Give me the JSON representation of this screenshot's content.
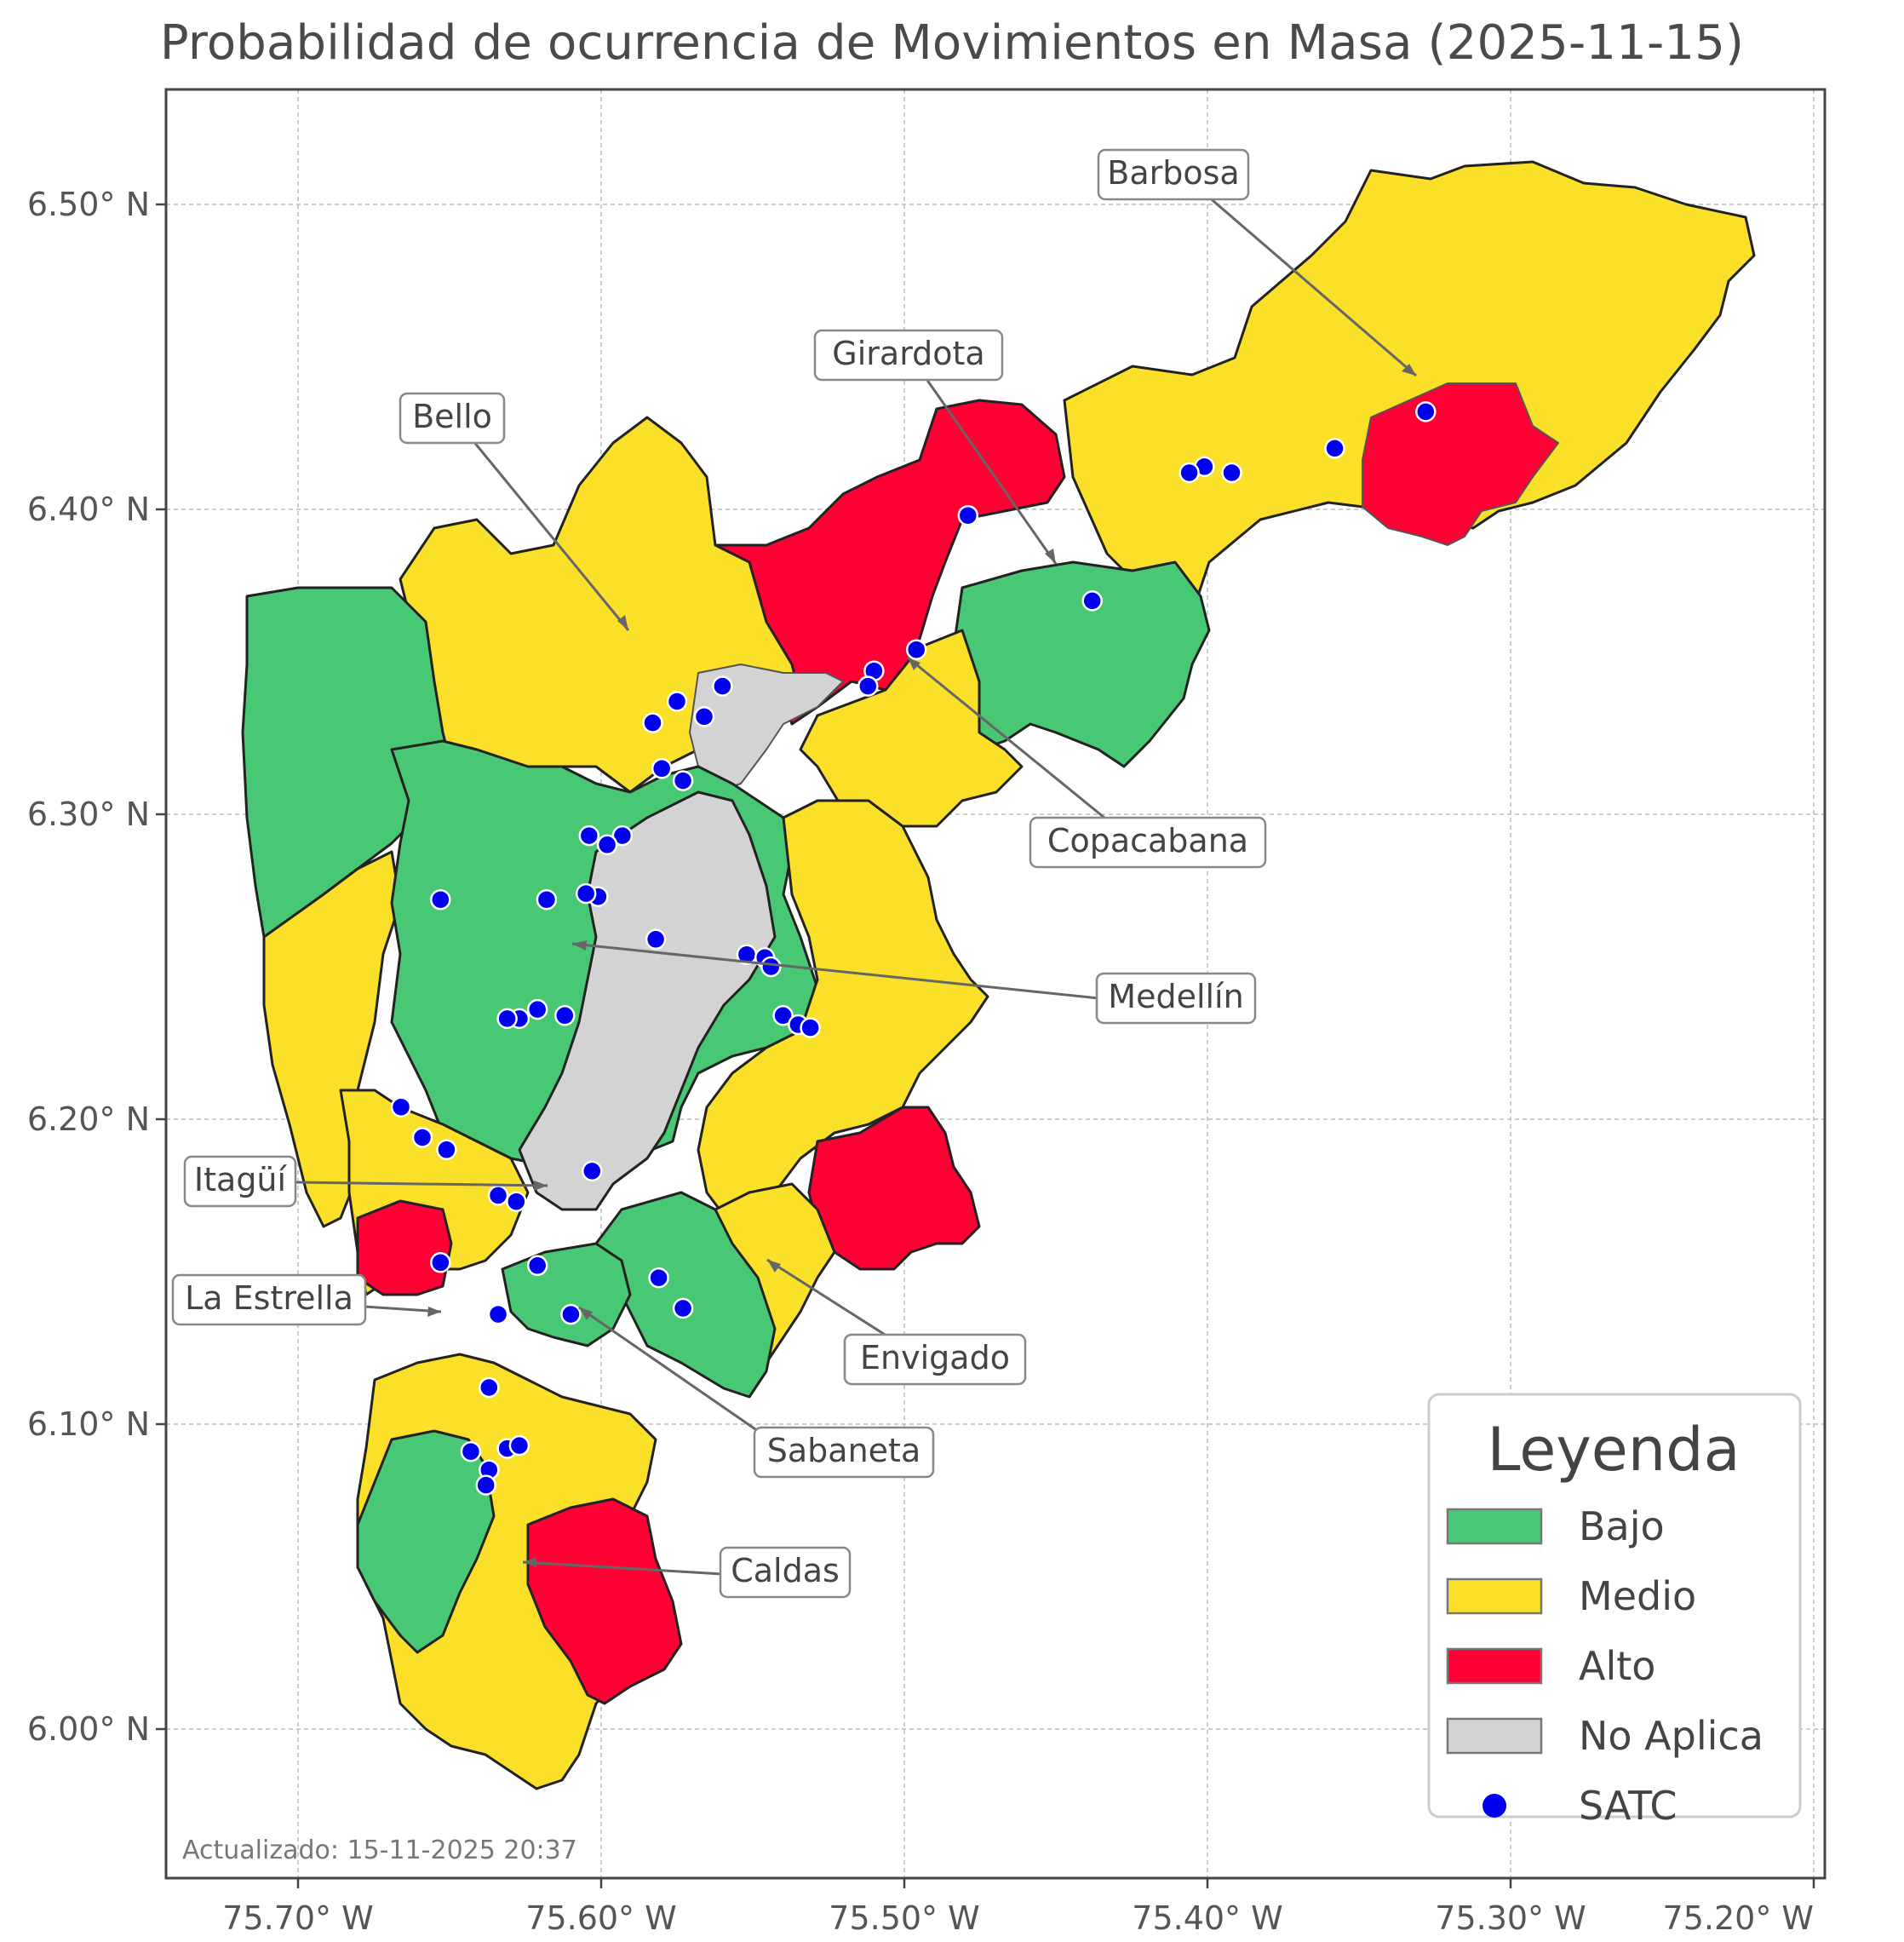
{
  "title": "Probabilidad de ocurrencia de Movimientos en Masa (2025-11-15)",
  "axes": {
    "x_ticks": [
      "75.70° W",
      "75.60° W",
      "75.50° W",
      "75.40° W",
      "75.30° W",
      "75.20° W"
    ],
    "y_ticks": [
      "6.50° N",
      "6.40° N",
      "6.30° N",
      "6.20° N",
      "6.10° N",
      "6.00° N"
    ],
    "x_range": [
      -75.745,
      -75.198
    ],
    "y_range": [
      5.953,
      6.537
    ],
    "grid": true
  },
  "colors": {
    "bajo": "#48c774",
    "medio": "#fbe02a",
    "alto": "#fe0034",
    "no_aplica": "#d3d3d3",
    "satc": "#0000ee"
  },
  "municipalities": [
    {
      "label": "Barbosa",
      "lon": -75.332,
      "lat": 6.445
    },
    {
      "label": "Girardota",
      "lon": -75.452,
      "lat": 6.38
    },
    {
      "label": "Bello",
      "lon": -75.592,
      "lat": 6.36
    },
    {
      "label": "Copacabana",
      "lon": -75.502,
      "lat": 6.352
    },
    {
      "label": "Medellín",
      "lon": -75.61,
      "lat": 6.258
    },
    {
      "label": "Itagüí",
      "lon": -75.618,
      "lat": 6.179
    },
    {
      "label": "Envigado",
      "lon": -75.545,
      "lat": 6.153
    },
    {
      "label": "La Estrella",
      "lon": -75.637,
      "lat": 6.137
    },
    {
      "label": "Sabaneta",
      "lon": -75.608,
      "lat": 6.138
    },
    {
      "label": "Caldas",
      "lon": -75.627,
      "lat": 6.055
    }
  ],
  "satc_stations": [
    [
      -75.328,
      6.432
    ],
    [
      -75.358,
      6.42
    ],
    [
      -75.392,
      6.412
    ],
    [
      -75.401,
      6.414
    ],
    [
      -75.406,
      6.412
    ],
    [
      -75.479,
      6.398
    ],
    [
      -75.438,
      6.37
    ],
    [
      -75.496,
      6.354
    ],
    [
      -75.51,
      6.347
    ],
    [
      -75.512,
      6.342
    ],
    [
      -75.56,
      6.342
    ],
    [
      -75.566,
      6.332
    ],
    [
      -75.575,
      6.337
    ],
    [
      -75.583,
      6.33
    ],
    [
      -75.58,
      6.315
    ],
    [
      -75.573,
      6.311
    ],
    [
      -75.593,
      6.293
    ],
    [
      -75.598,
      6.29
    ],
    [
      -75.604,
      6.293
    ],
    [
      -75.601,
      6.273
    ],
    [
      -75.653,
      6.272
    ],
    [
      -75.618,
      6.272
    ],
    [
      -75.605,
      6.274
    ],
    [
      -75.582,
      6.259
    ],
    [
      -75.552,
      6.254
    ],
    [
      -75.546,
      6.253
    ],
    [
      -75.544,
      6.25
    ],
    [
      -75.54,
      6.234
    ],
    [
      -75.535,
      6.231
    ],
    [
      -75.531,
      6.23
    ],
    [
      -75.621,
      6.236
    ],
    [
      -75.612,
      6.234
    ],
    [
      -75.627,
      6.233
    ],
    [
      -75.631,
      6.233
    ],
    [
      -75.666,
      6.204
    ],
    [
      -75.659,
      6.194
    ],
    [
      -75.651,
      6.19
    ],
    [
      -75.603,
      6.183
    ],
    [
      -75.634,
      6.175
    ],
    [
      -75.628,
      6.173
    ],
    [
      -75.653,
      6.153
    ],
    [
      -75.621,
      6.152
    ],
    [
      -75.581,
      6.148
    ],
    [
      -75.573,
      6.138
    ],
    [
      -75.61,
      6.136
    ],
    [
      -75.634,
      6.136
    ],
    [
      -75.637,
      6.112
    ],
    [
      -75.643,
      6.091
    ],
    [
      -75.631,
      6.092
    ],
    [
      -75.627,
      6.093
    ],
    [
      -75.637,
      6.085
    ],
    [
      -75.638,
      6.08
    ]
  ],
  "legend": {
    "title": "Leyenda",
    "items": [
      {
        "label": "Bajo",
        "kind": "patch",
        "color": "#48c774"
      },
      {
        "label": "Medio",
        "kind": "patch",
        "color": "#fbe02a"
      },
      {
        "label": "Alto",
        "kind": "patch",
        "color": "#fe0034"
      },
      {
        "label": "No Aplica",
        "kind": "patch",
        "color": "#d3d3d3"
      },
      {
        "label": "SATC",
        "kind": "point",
        "color": "#0000ee"
      }
    ]
  },
  "footnote": "Actualizado: 15-11-2025 20:37"
}
